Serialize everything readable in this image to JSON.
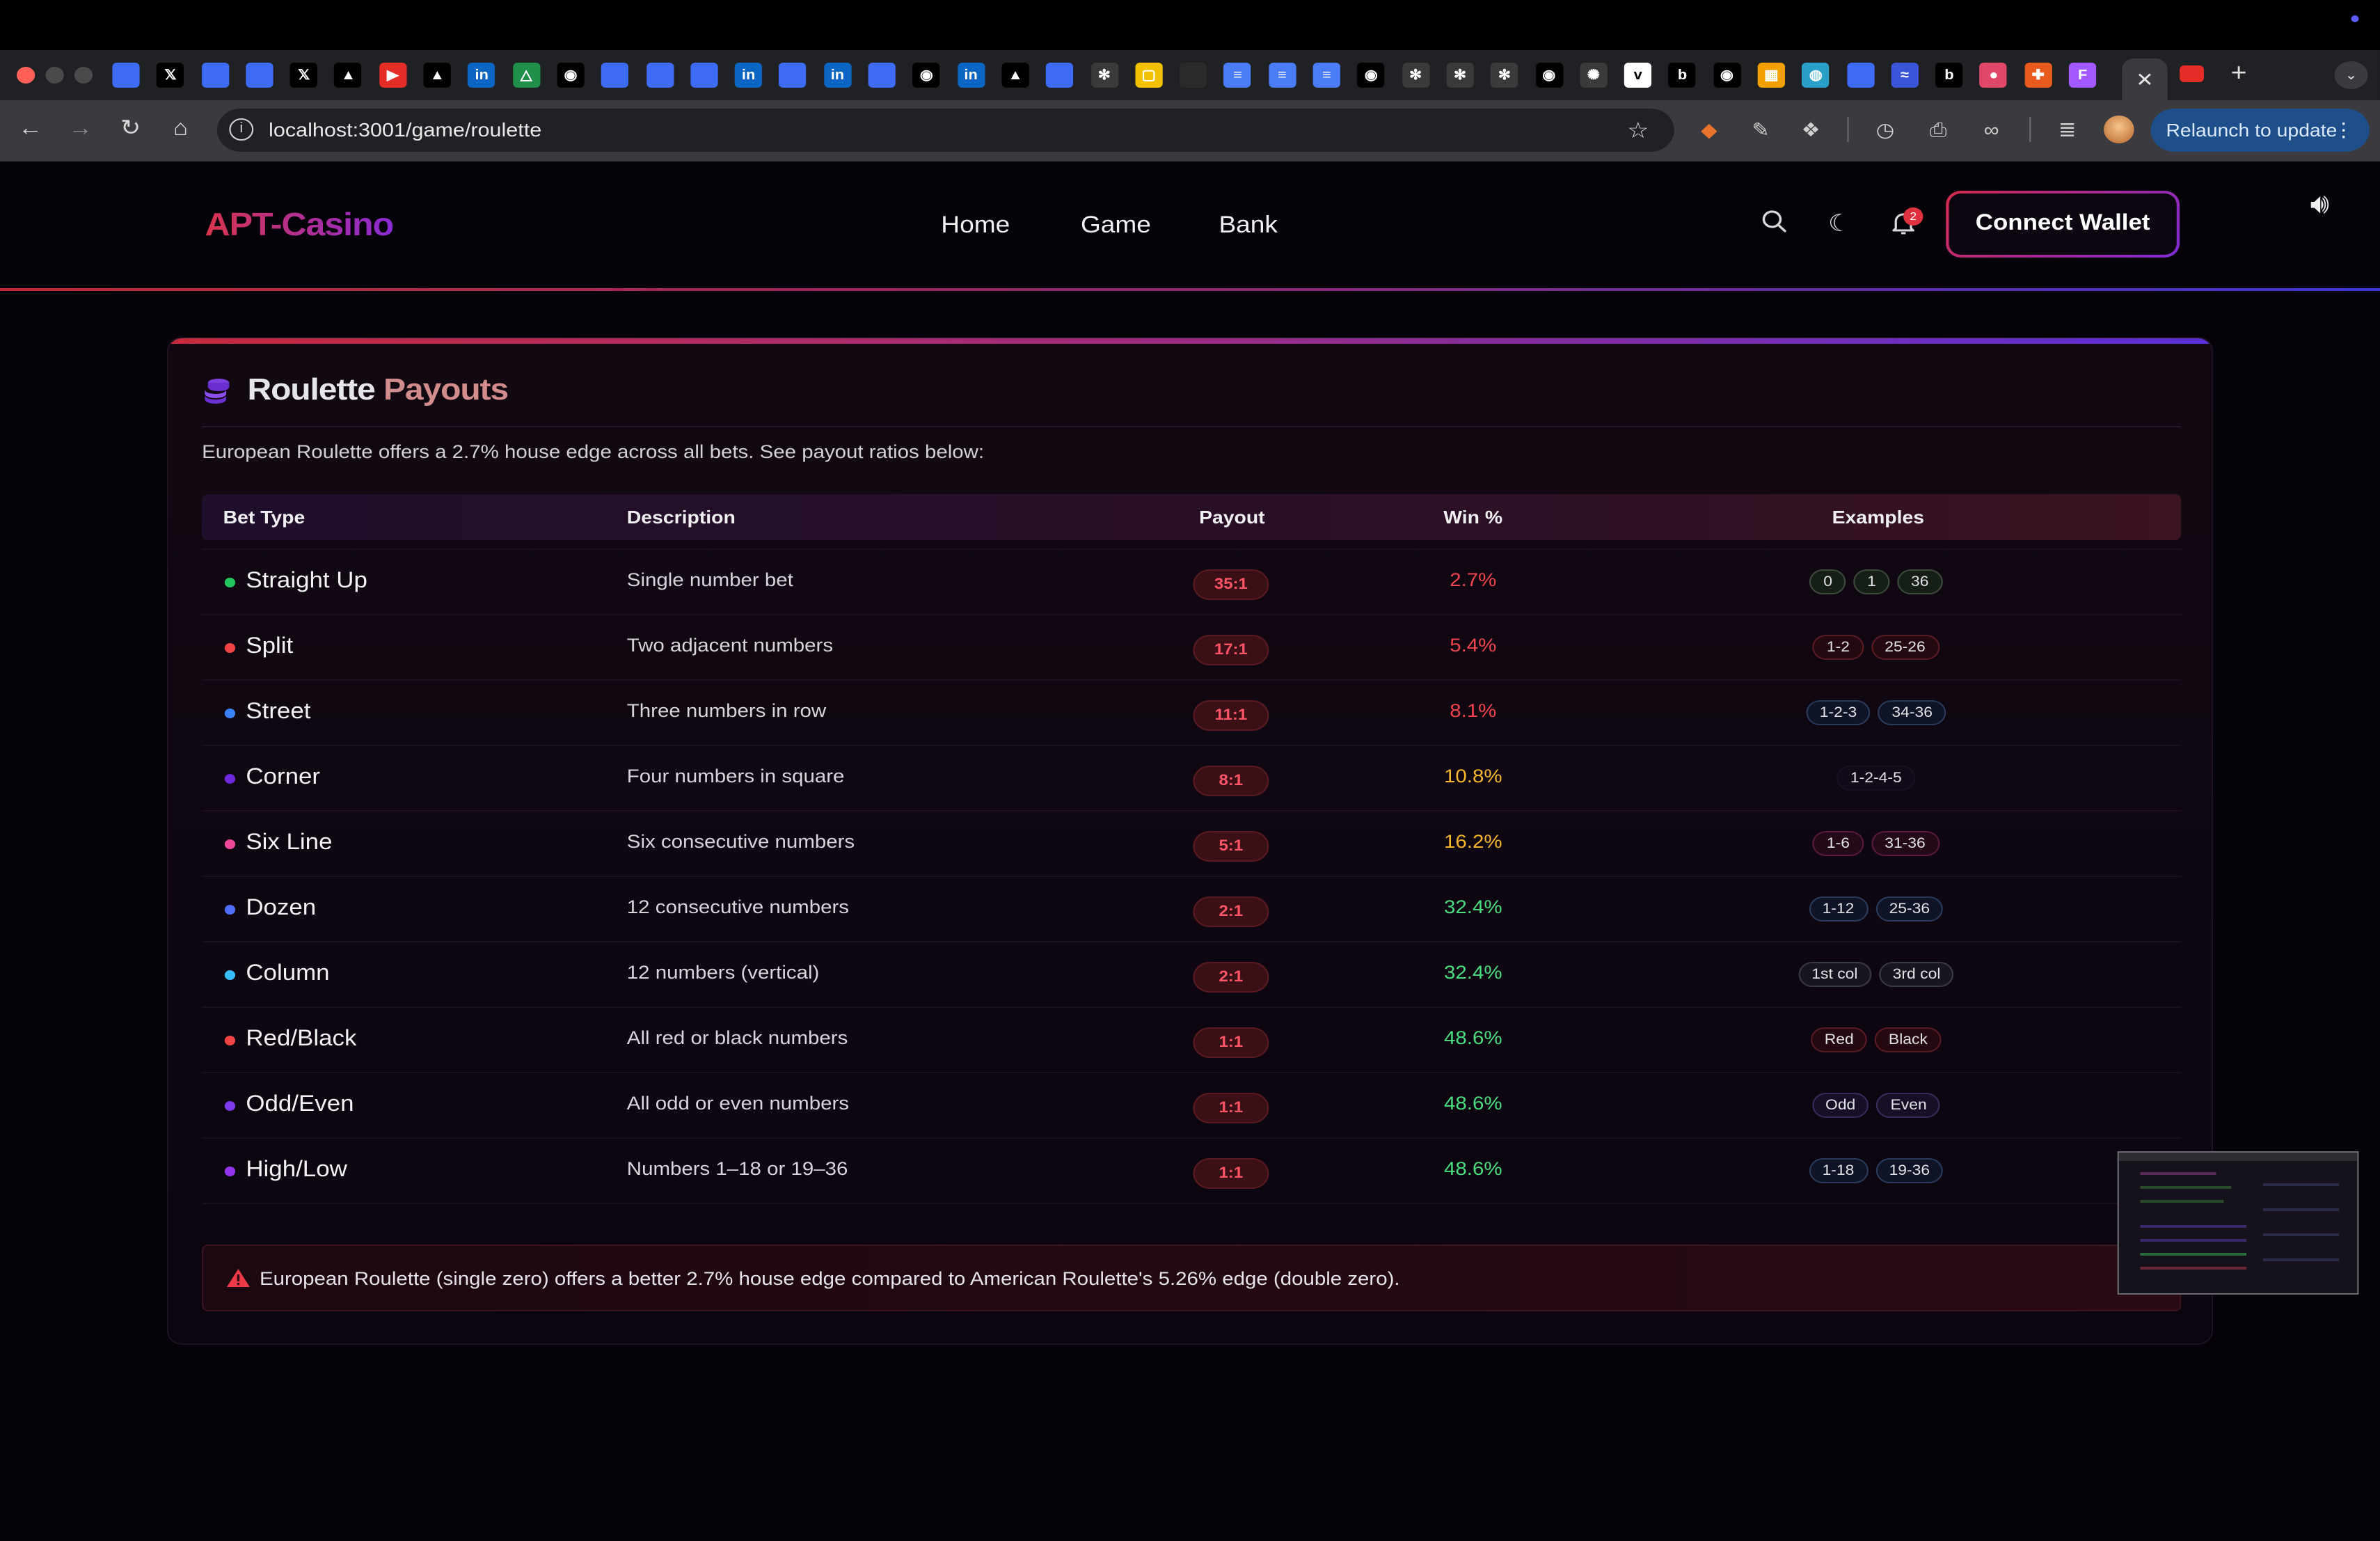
{
  "browser": {
    "url": "localhost:3001/game/roulette",
    "relaunch_label": "Relaunch to update",
    "tab_close": "✕",
    "new_tab": "+",
    "tab_favicons": [
      {
        "icon": "bookmark-tab-icon",
        "glyph": "",
        "color": "#3d6bf5"
      },
      {
        "icon": "x-tab-icon",
        "glyph": "𝕏",
        "color": "#000000"
      },
      {
        "icon": "bookmark-tab-icon",
        "glyph": "",
        "color": "#3d6bf5"
      },
      {
        "icon": "bookmark-tab-icon",
        "glyph": "",
        "color": "#3d6bf5"
      },
      {
        "icon": "x-tab-icon",
        "glyph": "𝕏",
        "color": "#000000"
      },
      {
        "icon": "triangle-tab-icon",
        "glyph": "▲",
        "color": "#000000"
      },
      {
        "icon": "youtube-tab-icon",
        "glyph": "▶",
        "color": "#e52d27"
      },
      {
        "icon": "triangle-tab-icon",
        "glyph": "▲",
        "color": "#000000"
      },
      {
        "icon": "linkedin-tab-icon",
        "glyph": "in",
        "color": "#0a66c2"
      },
      {
        "icon": "drive-tab-icon",
        "glyph": "△",
        "color": "#1f8f4a"
      },
      {
        "icon": "github-tab-icon",
        "glyph": "◉",
        "color": "#000000"
      },
      {
        "icon": "bookmark-tab-icon",
        "glyph": "",
        "color": "#3d6bf5"
      },
      {
        "icon": "bookmark-tab-icon",
        "glyph": "",
        "color": "#3d6bf5"
      },
      {
        "icon": "bookmark-tab-icon",
        "glyph": "",
        "color": "#3d6bf5"
      },
      {
        "icon": "linkedin-tab-icon",
        "glyph": "in",
        "color": "#0a66c2"
      },
      {
        "icon": "bookmark-tab-icon",
        "glyph": "",
        "color": "#3d6bf5"
      },
      {
        "icon": "linkedin-tab-icon",
        "glyph": "in",
        "color": "#0a66c2"
      },
      {
        "icon": "bookmark-tab-icon",
        "glyph": "",
        "color": "#3d6bf5"
      },
      {
        "icon": "github-tab-icon",
        "glyph": "◉",
        "color": "#000000"
      },
      {
        "icon": "linkedin-tab-icon",
        "glyph": "in",
        "color": "#0a66c2"
      },
      {
        "icon": "triangle-tab-icon",
        "glyph": "▲",
        "color": "#000000"
      },
      {
        "icon": "bookmark-tab-icon",
        "glyph": "",
        "color": "#3d6bf5"
      },
      {
        "icon": "aperture-tab-icon",
        "glyph": "✻",
        "color": "#3a3a3a"
      },
      {
        "icon": "square-tab-icon",
        "glyph": "▢",
        "color": "#f2c200"
      },
      {
        "icon": "circle-tab-icon",
        "glyph": "",
        "color": "#2a2a2a"
      },
      {
        "icon": "docs-tab-icon",
        "glyph": "≡",
        "color": "#4a7df5"
      },
      {
        "icon": "docs-tab-icon",
        "glyph": "≡",
        "color": "#4a7df5"
      },
      {
        "icon": "docs-tab-icon",
        "glyph": "≡",
        "color": "#4a7df5"
      },
      {
        "icon": "github-tab-icon",
        "glyph": "◉",
        "color": "#000000"
      },
      {
        "icon": "aperture-tab-icon",
        "glyph": "✻",
        "color": "#3a3a3a"
      },
      {
        "icon": "aperture-tab-icon",
        "glyph": "✻",
        "color": "#3a3a3a"
      },
      {
        "icon": "aperture-tab-icon",
        "glyph": "✻",
        "color": "#3a3a3a"
      },
      {
        "icon": "github-tab-icon",
        "glyph": "◉",
        "color": "#000000"
      },
      {
        "icon": "openai-tab-icon",
        "glyph": "✺",
        "color": "#3a3a3a"
      },
      {
        "icon": "vercel-tab-icon",
        "glyph": "v",
        "color": "#ffffff"
      },
      {
        "icon": "bold-tab-icon",
        "glyph": "b",
        "color": "#000000"
      },
      {
        "icon": "github-tab-icon",
        "glyph": "◉",
        "color": "#000000"
      },
      {
        "icon": "grid-tab-icon",
        "glyph": "▦",
        "color": "#f2a100"
      },
      {
        "icon": "globe-tab-icon",
        "glyph": "◍",
        "color": "#2aa0c8"
      },
      {
        "icon": "bookmark-tab-icon",
        "glyph": "",
        "color": "#3d6bf5"
      },
      {
        "icon": "wave-tab-icon",
        "glyph": "≈",
        "color": "#3b55d8"
      },
      {
        "icon": "bold-tab-icon",
        "glyph": "b",
        "color": "#000000"
      },
      {
        "icon": "blob-tab-icon",
        "glyph": "●",
        "color": "#e0486a"
      },
      {
        "icon": "plus-tab-icon",
        "glyph": "✚",
        "color": "#e85a1e"
      },
      {
        "icon": "figma-tab-icon",
        "glyph": "F",
        "color": "#a259ff"
      }
    ]
  },
  "site": {
    "logo": "APT-Casino",
    "menu": [
      "Home",
      "Game",
      "Bank"
    ],
    "notifications_count": "2",
    "connect_label": "Connect Wallet"
  },
  "card": {
    "title_part1": "Roulette",
    "title_part2": "Payouts",
    "intro": "European Roulette offers a 2.7% house edge across all bets. See payout ratios below:",
    "headers": {
      "bet_type": "Bet Type",
      "description": "Description",
      "payout": "Payout",
      "win": "Win %",
      "examples": "Examples"
    },
    "rows": [
      {
        "name": "Straight Up",
        "desc": "Single number bet",
        "payout": "35:1",
        "win": "2.7%",
        "dot": "#22c55e",
        "win_color": "#f0444e",
        "examples": [
          {
            "t": "0",
            "border": "#3c4a3c",
            "bg": "#161f16"
          },
          {
            "t": "1",
            "border": "#3c4a3c",
            "bg": "#161f16"
          },
          {
            "t": "36",
            "border": "#3c4a3c",
            "bg": "#161f16"
          }
        ]
      },
      {
        "name": "Split",
        "desc": "Two adjacent numbers",
        "payout": "17:1",
        "win": "5.4%",
        "dot": "#ef4444",
        "win_color": "#f0444e",
        "examples": [
          {
            "t": "1-2",
            "border": "#5a1a24",
            "bg": "#240a10"
          },
          {
            "t": "25-26",
            "border": "#5a1a24",
            "bg": "#240a10"
          }
        ]
      },
      {
        "name": "Street",
        "desc": "Three numbers in row",
        "payout": "11:1",
        "win": "8.1%",
        "dot": "#3b82f6",
        "win_color": "#f0444e",
        "examples": [
          {
            "t": "1-2-3",
            "border": "#2a3a5a",
            "bg": "#0f1526"
          },
          {
            "t": "34-36",
            "border": "#2a3a5a",
            "bg": "#0f1526"
          }
        ]
      },
      {
        "name": "Corner",
        "desc": "Four numbers in square",
        "payout": "8:1",
        "win": "10.8%",
        "dot": "#6d28d9",
        "win_color": "#f5b52e",
        "examples": [
          {
            "t": "1-2-4-5",
            "border": "#1a1024",
            "bg": "#120a18"
          }
        ]
      },
      {
        "name": "Six Line",
        "desc": "Six consecutive numbers",
        "payout": "5:1",
        "win": "16.2%",
        "dot": "#ec4899",
        "win_color": "#f5b52e",
        "examples": [
          {
            "t": "1-6",
            "border": "#5a1a3a",
            "bg": "#240a18"
          },
          {
            "t": "31-36",
            "border": "#5a1a3a",
            "bg": "#240a18"
          }
        ]
      },
      {
        "name": "Dozen",
        "desc": "12 consecutive numbers",
        "payout": "2:1",
        "win": "32.4%",
        "dot": "#4f6ef7",
        "win_color": "#4ade80",
        "examples": [
          {
            "t": "1-12",
            "border": "#2a3a5a",
            "bg": "#0f1526"
          },
          {
            "t": "25-36",
            "border": "#2a3a5a",
            "bg": "#0f1526"
          }
        ]
      },
      {
        "name": "Column",
        "desc": "12 numbers (vertical)",
        "payout": "2:1",
        "win": "32.4%",
        "dot": "#38bdf8",
        "win_color": "#4ade80",
        "examples": [
          {
            "t": "1st col",
            "border": "#3a3a46",
            "bg": "#17151d"
          },
          {
            "t": "3rd col",
            "border": "#3a3a46",
            "bg": "#17151d"
          }
        ]
      },
      {
        "name": "Red/Black",
        "desc": "All red or black numbers",
        "payout": "1:1",
        "win": "48.6%",
        "dot": "#ef4444",
        "win_color": "#4ade80",
        "examples": [
          {
            "t": "Red",
            "border": "#5a1a24",
            "bg": "#240a10"
          },
          {
            "t": "Black",
            "border": "#5a1a24",
            "bg": "#240a10"
          }
        ]
      },
      {
        "name": "Odd/Even",
        "desc": "All odd or even numbers",
        "payout": "1:1",
        "win": "48.6%",
        "dot": "#7c3aed",
        "win_color": "#4ade80",
        "examples": [
          {
            "t": "Odd",
            "border": "#3a2a5a",
            "bg": "#160f26"
          },
          {
            "t": "Even",
            "border": "#3a2a5a",
            "bg": "#160f26"
          }
        ]
      },
      {
        "name": "High/Low",
        "desc": "Numbers 1–18 or 19–36",
        "payout": "1:1",
        "win": "48.6%",
        "dot": "#9333ea",
        "win_color": "#4ade80",
        "examples": [
          {
            "t": "1-18",
            "border": "#2a3a5a",
            "bg": "#0f1526"
          },
          {
            "t": "19-36",
            "border": "#2a3a5a",
            "bg": "#0f1526"
          }
        ]
      }
    ],
    "note": "European Roulette (single zero) offers a better 2.7% house edge compared to American Roulette's 5.26% edge (double zero)."
  }
}
